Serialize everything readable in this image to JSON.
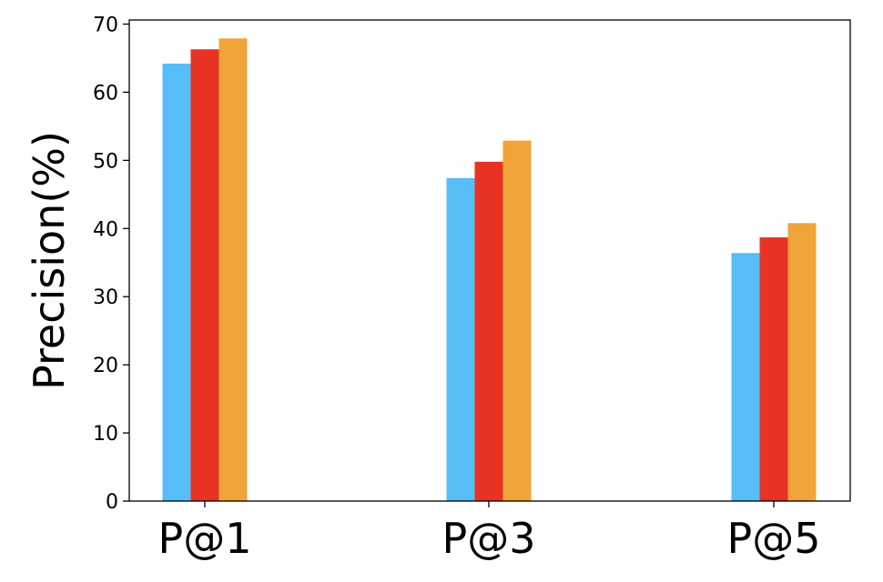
{
  "chart_data": {
    "type": "bar",
    "title": "",
    "xlabel": "",
    "ylabel": "Precision(%)",
    "categories": [
      "P@1",
      "P@3",
      "P@5"
    ],
    "series": [
      {
        "values": [
          64.2,
          47.4,
          36.4
        ],
        "color": "#56bdf7"
      },
      {
        "values": [
          66.3,
          49.8,
          38.7
        ],
        "color": "#e83324"
      },
      {
        "values": [
          67.9,
          52.9,
          40.8
        ],
        "color": "#f1a43a"
      }
    ],
    "ylim": [
      0,
      70.6
    ],
    "yticks": [
      0,
      10,
      20,
      30,
      40,
      50,
      60,
      70
    ],
    "ytick_labels": [
      "0",
      "10",
      "20",
      "30",
      "40",
      "50",
      "60",
      "70"
    ],
    "grid": false,
    "legend": "none"
  }
}
